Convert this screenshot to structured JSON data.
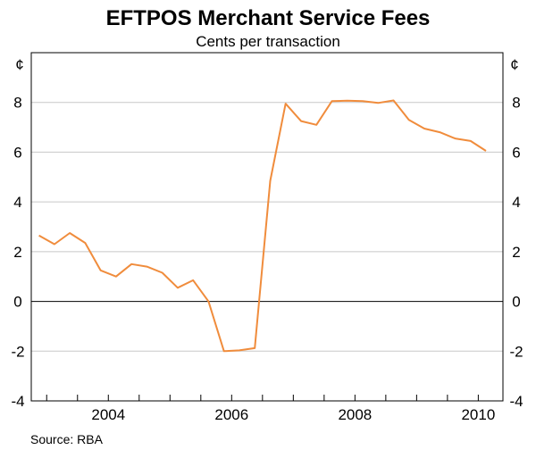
{
  "chart_data": {
    "type": "line",
    "title": "EFTPOS Merchant Service Fees",
    "subtitle": "Cents per transaction",
    "unit_left": "¢",
    "unit_right": "¢",
    "source": "Source: RBA",
    "ylim": [
      -4,
      10
    ],
    "y_ticks": [
      -4,
      -2,
      0,
      2,
      4,
      6,
      8
    ],
    "y_tick_labels": [
      "-4",
      "-2",
      "0",
      "2",
      "4",
      "6",
      "8"
    ],
    "xlim": [
      2002.75,
      2010.4
    ],
    "x_ticks": [
      2003,
      2003.5,
      2004,
      2004.5,
      2005,
      2005.5,
      2006,
      2006.5,
      2007,
      2007.5,
      2008,
      2008.5,
      2009,
      2009.5,
      2010
    ],
    "x_tick_labels": [
      {
        "x": 2004,
        "label": "2004"
      },
      {
        "x": 2006,
        "label": "2006"
      },
      {
        "x": 2008,
        "label": "2008"
      },
      {
        "x": 2010,
        "label": "2010"
      }
    ],
    "grid": true,
    "series": [
      {
        "color": "#f08c3c",
        "x": [
          2002.875,
          2003.125,
          2003.375,
          2003.625,
          2003.875,
          2004.125,
          2004.375,
          2004.625,
          2004.875,
          2005.125,
          2005.375,
          2005.625,
          2005.875,
          2006.125,
          2006.375,
          2006.625,
          2006.875,
          2007.125,
          2007.375,
          2007.625,
          2007.875,
          2008.125,
          2008.375,
          2008.625,
          2008.875,
          2009.125,
          2009.375,
          2009.625,
          2009.875,
          2010.125
        ],
        "values": [
          2.65,
          2.3,
          2.75,
          2.35,
          1.25,
          1.0,
          1.5,
          1.4,
          1.15,
          0.55,
          0.85,
          0.0,
          -2.0,
          -1.97,
          -1.88,
          4.85,
          7.95,
          7.25,
          7.1,
          8.05,
          8.07,
          8.05,
          7.98,
          8.08,
          7.3,
          6.95,
          6.8,
          6.55,
          6.45,
          6.05
        ]
      }
    ]
  }
}
